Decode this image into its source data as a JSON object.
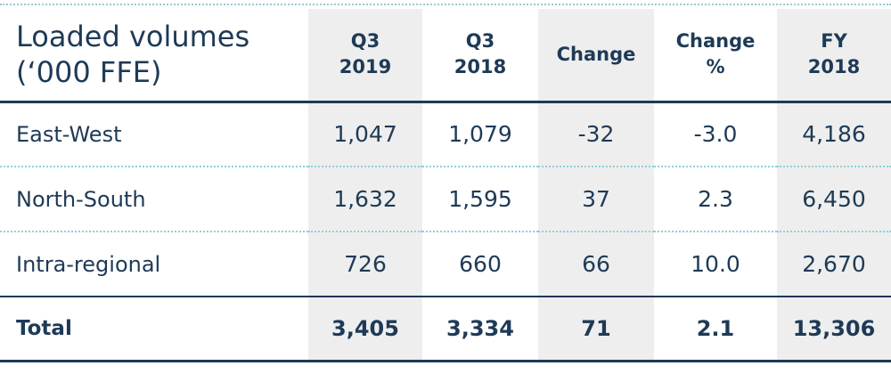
{
  "table": {
    "title_line1": "Loaded volumes",
    "title_line2": "(‘000 FFE)",
    "columns": [
      {
        "line1": "Q3",
        "line2": "2019"
      },
      {
        "line1": "Q3",
        "line2": "2018"
      },
      {
        "line1": "Change",
        "line2": ""
      },
      {
        "line1": "Change",
        "line2": "%"
      },
      {
        "line1": "FY",
        "line2": "2018"
      }
    ],
    "rows": [
      {
        "label": "East-West",
        "values": [
          "1,047",
          "1,079",
          "-32",
          "-3.0",
          "4,186"
        ]
      },
      {
        "label": "North-South",
        "values": [
          "1,632",
          "1,595",
          "37",
          "2.3",
          "6,450"
        ]
      },
      {
        "label": "Intra-regional",
        "values": [
          "726",
          "660",
          "66",
          "10.0",
          "2,670"
        ]
      }
    ],
    "total": {
      "label": "Total",
      "values": [
        "3,405",
        "3,334",
        "71",
        "2.1",
        "13,306"
      ]
    }
  },
  "colors": {
    "text": "#1e3a56",
    "shaded_column": "#eeeeee",
    "dotted_rule": "#8fd0d4"
  }
}
